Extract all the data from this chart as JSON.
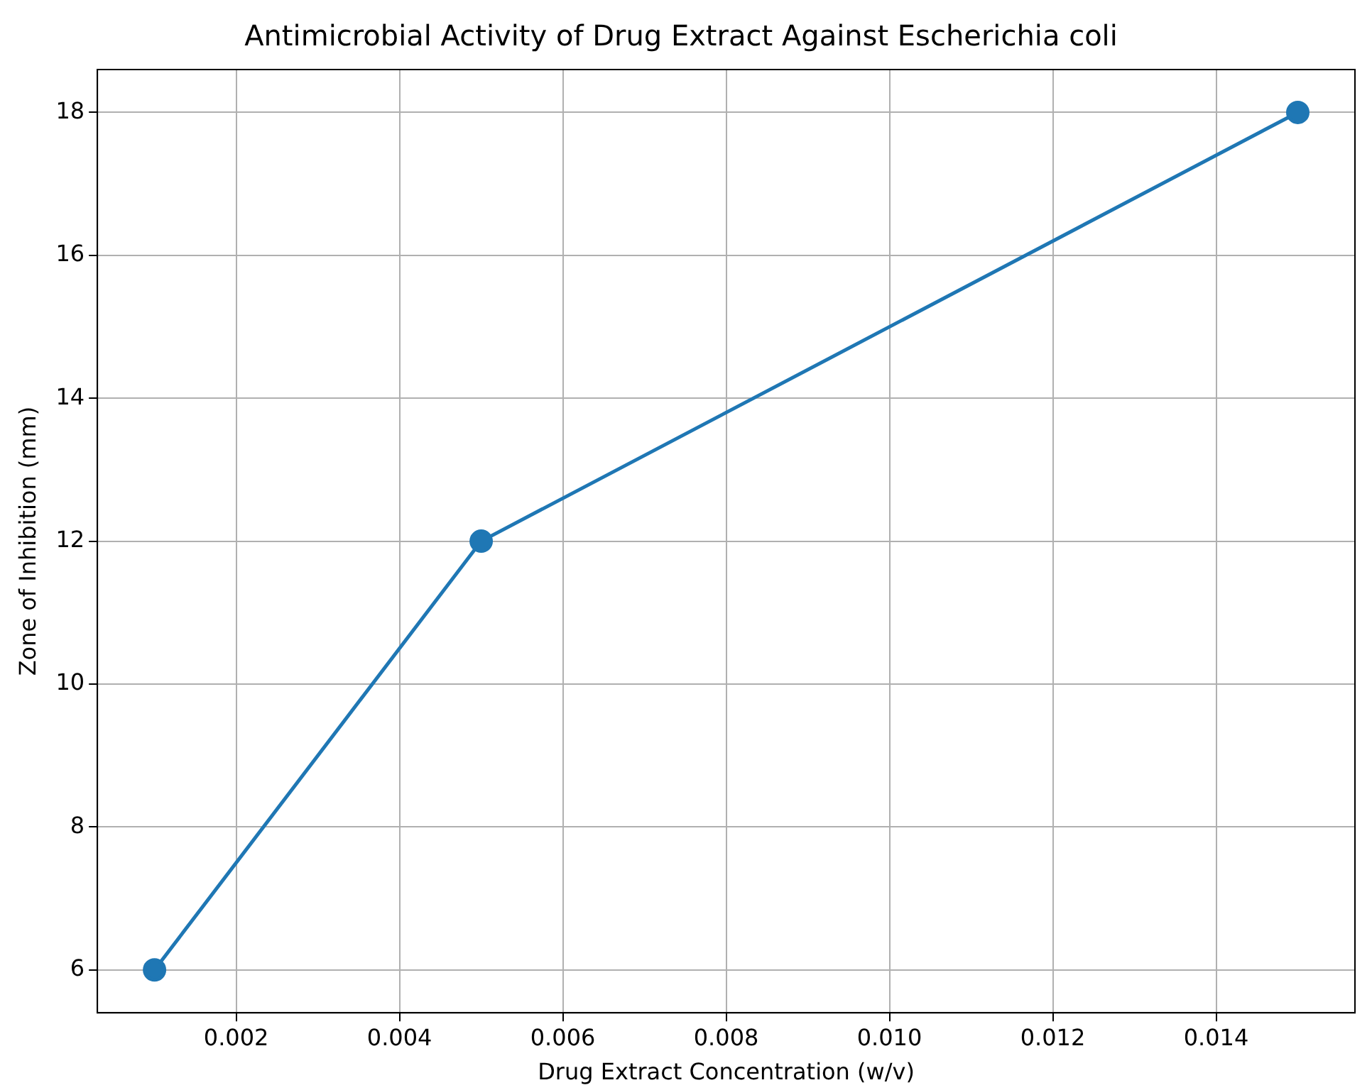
{
  "chart_data": {
    "type": "line",
    "title": "Antimicrobial Activity of Drug Extract Against Escherichia coli",
    "xlabel": "Drug Extract Concentration (w/v)",
    "ylabel": "Zone of Inhibition (mm)",
    "x": [
      0.001,
      0.005,
      0.015
    ],
    "series": [
      {
        "color": "#1f77b4",
        "values": [
          6,
          12,
          18
        ]
      }
    ],
    "xlim": [
      0.0003,
      0.0157
    ],
    "xticks": [
      {
        "value": 0.002,
        "label": "0.002"
      },
      {
        "value": 0.004,
        "label": "0.004"
      },
      {
        "value": 0.006,
        "label": "0.006"
      },
      {
        "value": 0.008,
        "label": "0.008"
      },
      {
        "value": 0.01,
        "label": "0.010"
      },
      {
        "value": 0.012,
        "label": "0.012"
      },
      {
        "value": 0.014,
        "label": "0.014"
      }
    ],
    "ylim": [
      5.4,
      18.6
    ],
    "yticks": [
      6,
      8,
      10,
      12,
      14,
      16,
      18
    ],
    "grid": true,
    "legend": false,
    "marker": "circle",
    "line_style": "solid"
  }
}
